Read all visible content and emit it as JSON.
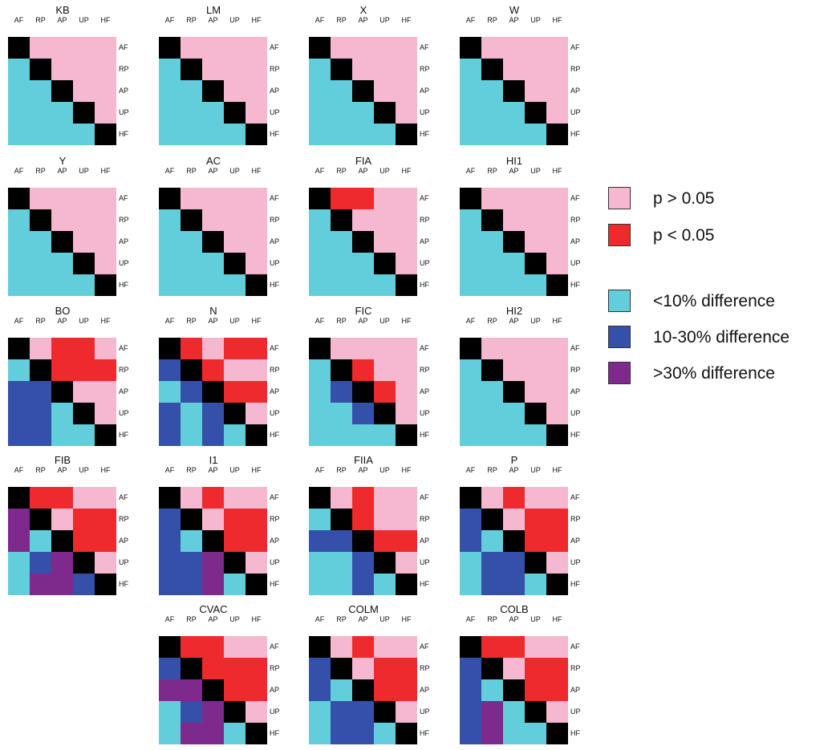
{
  "colors": {
    "pink": "#f5b8d0",
    "red": "#ee2a2d",
    "cyan": "#62cedb",
    "blue": "#3550a8",
    "purple": "#7e2a8c",
    "black": "#000000"
  },
  "axis_labels": [
    "AF",
    "RP",
    "AP",
    "UP",
    "HF"
  ],
  "legend": [
    {
      "color": "pink",
      "label": "p > 0.05"
    },
    {
      "color": "red",
      "label": "p < 0.05"
    },
    {
      "color": "cyan",
      "label": "<10% difference"
    },
    {
      "color": "blue",
      "label": "10-30% difference"
    },
    {
      "color": "purple",
      "label": ">30% difference"
    }
  ],
  "panels": [
    {
      "title": "KB",
      "grid": [
        [
          "K",
          "P",
          "P",
          "P",
          "P"
        ],
        [
          "C",
          "K",
          "P",
          "P",
          "P"
        ],
        [
          "C",
          "C",
          "K",
          "P",
          "P"
        ],
        [
          "C",
          "C",
          "C",
          "K",
          "P"
        ],
        [
          "C",
          "C",
          "C",
          "C",
          "K"
        ]
      ]
    },
    {
      "title": "LM",
      "grid": [
        [
          "K",
          "P",
          "P",
          "P",
          "P"
        ],
        [
          "C",
          "K",
          "P",
          "P",
          "P"
        ],
        [
          "C",
          "C",
          "K",
          "P",
          "P"
        ],
        [
          "C",
          "C",
          "C",
          "K",
          "P"
        ],
        [
          "C",
          "C",
          "C",
          "C",
          "K"
        ]
      ]
    },
    {
      "title": "X",
      "grid": [
        [
          "K",
          "P",
          "P",
          "P",
          "P"
        ],
        [
          "C",
          "K",
          "P",
          "P",
          "P"
        ],
        [
          "C",
          "C",
          "K",
          "P",
          "P"
        ],
        [
          "C",
          "C",
          "C",
          "K",
          "P"
        ],
        [
          "C",
          "C",
          "C",
          "C",
          "K"
        ]
      ]
    },
    {
      "title": "W",
      "grid": [
        [
          "K",
          "P",
          "P",
          "P",
          "P"
        ],
        [
          "C",
          "K",
          "P",
          "P",
          "P"
        ],
        [
          "C",
          "C",
          "K",
          "P",
          "P"
        ],
        [
          "C",
          "C",
          "C",
          "K",
          "P"
        ],
        [
          "C",
          "C",
          "C",
          "C",
          "K"
        ]
      ]
    },
    {
      "title": "Y",
      "grid": [
        [
          "K",
          "P",
          "P",
          "P",
          "P"
        ],
        [
          "C",
          "K",
          "P",
          "P",
          "P"
        ],
        [
          "C",
          "C",
          "K",
          "P",
          "P"
        ],
        [
          "C",
          "C",
          "C",
          "K",
          "P"
        ],
        [
          "C",
          "C",
          "C",
          "C",
          "K"
        ]
      ]
    },
    {
      "title": "AC",
      "grid": [
        [
          "K",
          "P",
          "P",
          "P",
          "P"
        ],
        [
          "C",
          "K",
          "P",
          "P",
          "P"
        ],
        [
          "C",
          "C",
          "K",
          "P",
          "P"
        ],
        [
          "C",
          "C",
          "C",
          "K",
          "P"
        ],
        [
          "C",
          "C",
          "C",
          "C",
          "K"
        ]
      ]
    },
    {
      "title": "FIA",
      "grid": [
        [
          "K",
          "R",
          "R",
          "P",
          "P"
        ],
        [
          "C",
          "K",
          "P",
          "P",
          "P"
        ],
        [
          "C",
          "C",
          "K",
          "P",
          "P"
        ],
        [
          "C",
          "C",
          "C",
          "K",
          "P"
        ],
        [
          "C",
          "C",
          "C",
          "C",
          "K"
        ]
      ]
    },
    {
      "title": "HI1",
      "grid": [
        [
          "K",
          "P",
          "P",
          "P",
          "P"
        ],
        [
          "C",
          "K",
          "P",
          "P",
          "P"
        ],
        [
          "C",
          "C",
          "K",
          "P",
          "P"
        ],
        [
          "C",
          "C",
          "C",
          "K",
          "P"
        ],
        [
          "C",
          "C",
          "C",
          "C",
          "K"
        ]
      ]
    },
    {
      "title": "BO",
      "grid": [
        [
          "K",
          "P",
          "R",
          "R",
          "P"
        ],
        [
          "C",
          "K",
          "R",
          "R",
          "R"
        ],
        [
          "B",
          "B",
          "K",
          "P",
          "P"
        ],
        [
          "B",
          "B",
          "C",
          "K",
          "P"
        ],
        [
          "B",
          "B",
          "C",
          "C",
          "K"
        ]
      ]
    },
    {
      "title": "N",
      "grid": [
        [
          "K",
          "R",
          "P",
          "R",
          "R"
        ],
        [
          "B",
          "K",
          "R",
          "P",
          "P"
        ],
        [
          "C",
          "B",
          "K",
          "R",
          "R"
        ],
        [
          "B",
          "C",
          "B",
          "K",
          "P"
        ],
        [
          "B",
          "C",
          "B",
          "C",
          "K"
        ]
      ]
    },
    {
      "title": "FIC",
      "grid": [
        [
          "K",
          "P",
          "P",
          "P",
          "P"
        ],
        [
          "C",
          "K",
          "R",
          "P",
          "P"
        ],
        [
          "C",
          "B",
          "K",
          "R",
          "P"
        ],
        [
          "C",
          "C",
          "B",
          "K",
          "P"
        ],
        [
          "C",
          "C",
          "C",
          "C",
          "K"
        ]
      ]
    },
    {
      "title": "HI2",
      "grid": [
        [
          "K",
          "P",
          "P",
          "P",
          "P"
        ],
        [
          "C",
          "K",
          "P",
          "P",
          "P"
        ],
        [
          "C",
          "C",
          "K",
          "P",
          "P"
        ],
        [
          "C",
          "C",
          "C",
          "K",
          "P"
        ],
        [
          "C",
          "C",
          "C",
          "C",
          "K"
        ]
      ]
    },
    {
      "title": "FIB",
      "grid": [
        [
          "K",
          "R",
          "R",
          "P",
          "P"
        ],
        [
          "U",
          "K",
          "P",
          "R",
          "R"
        ],
        [
          "U",
          "C",
          "K",
          "R",
          "R"
        ],
        [
          "C",
          "B",
          "U",
          "K",
          "P"
        ],
        [
          "C",
          "U",
          "U",
          "B",
          "K"
        ]
      ]
    },
    {
      "title": "I1",
      "grid": [
        [
          "K",
          "P",
          "R",
          "P",
          "P"
        ],
        [
          "B",
          "K",
          "P",
          "R",
          "R"
        ],
        [
          "B",
          "C",
          "K",
          "R",
          "R"
        ],
        [
          "B",
          "B",
          "U",
          "K",
          "P"
        ],
        [
          "B",
          "B",
          "U",
          "C",
          "K"
        ]
      ]
    },
    {
      "title": "FIIA",
      "grid": [
        [
          "K",
          "P",
          "R",
          "P",
          "P"
        ],
        [
          "C",
          "K",
          "R",
          "P",
          "P"
        ],
        [
          "B",
          "B",
          "K",
          "R",
          "R"
        ],
        [
          "C",
          "C",
          "B",
          "K",
          "P"
        ],
        [
          "C",
          "C",
          "B",
          "C",
          "K"
        ]
      ]
    },
    {
      "title": "P",
      "grid": [
        [
          "K",
          "P",
          "R",
          "P",
          "P"
        ],
        [
          "B",
          "K",
          "P",
          "R",
          "R"
        ],
        [
          "B",
          "C",
          "K",
          "R",
          "R"
        ],
        [
          "C",
          "B",
          "B",
          "K",
          "P"
        ],
        [
          "C",
          "B",
          "B",
          "C",
          "K"
        ]
      ]
    },
    {
      "title": "CVAC",
      "grid": [
        [
          "K",
          "R",
          "R",
          "P",
          "P"
        ],
        [
          "B",
          "K",
          "R",
          "R",
          "R"
        ],
        [
          "U",
          "U",
          "K",
          "R",
          "R"
        ],
        [
          "C",
          "B",
          "U",
          "K",
          "P"
        ],
        [
          "C",
          "U",
          "U",
          "C",
          "K"
        ]
      ]
    },
    {
      "title": "COLM",
      "grid": [
        [
          "K",
          "P",
          "R",
          "P",
          "P"
        ],
        [
          "B",
          "K",
          "P",
          "R",
          "R"
        ],
        [
          "B",
          "C",
          "K",
          "R",
          "R"
        ],
        [
          "C",
          "B",
          "B",
          "K",
          "P"
        ],
        [
          "C",
          "B",
          "B",
          "C",
          "K"
        ]
      ]
    },
    {
      "title": "COLB",
      "grid": [
        [
          "K",
          "R",
          "R",
          "P",
          "P"
        ],
        [
          "B",
          "K",
          "P",
          "R",
          "R"
        ],
        [
          "B",
          "C",
          "K",
          "R",
          "R"
        ],
        [
          "B",
          "U",
          "C",
          "K",
          "P"
        ],
        [
          "B",
          "U",
          "C",
          "C",
          "K"
        ]
      ]
    }
  ]
}
